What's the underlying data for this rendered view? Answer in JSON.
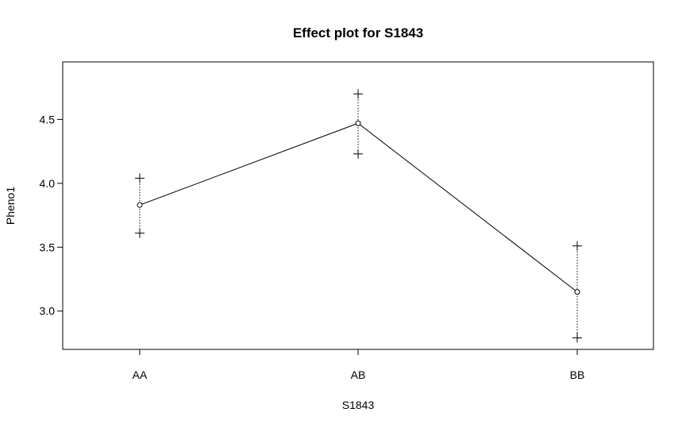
{
  "chart_data": {
    "type": "line",
    "title": "Effect plot for S1843",
    "xlabel": "S1843",
    "ylabel": "Pheno1",
    "categories": [
      "AA",
      "AB",
      "BB"
    ],
    "ylim": [
      2.7,
      4.95
    ],
    "yticks": [
      "3.0",
      "3.5",
      "4.0",
      "4.5"
    ],
    "grid": false,
    "legend": "none",
    "series": [
      {
        "values": [
          3.83,
          4.47,
          3.15
        ],
        "upper": [
          4.04,
          4.7,
          3.51
        ],
        "lower": [
          3.61,
          4.23,
          2.79
        ]
      }
    ],
    "colors": {
      "line": "#000000",
      "background": "#ffffff"
    }
  }
}
